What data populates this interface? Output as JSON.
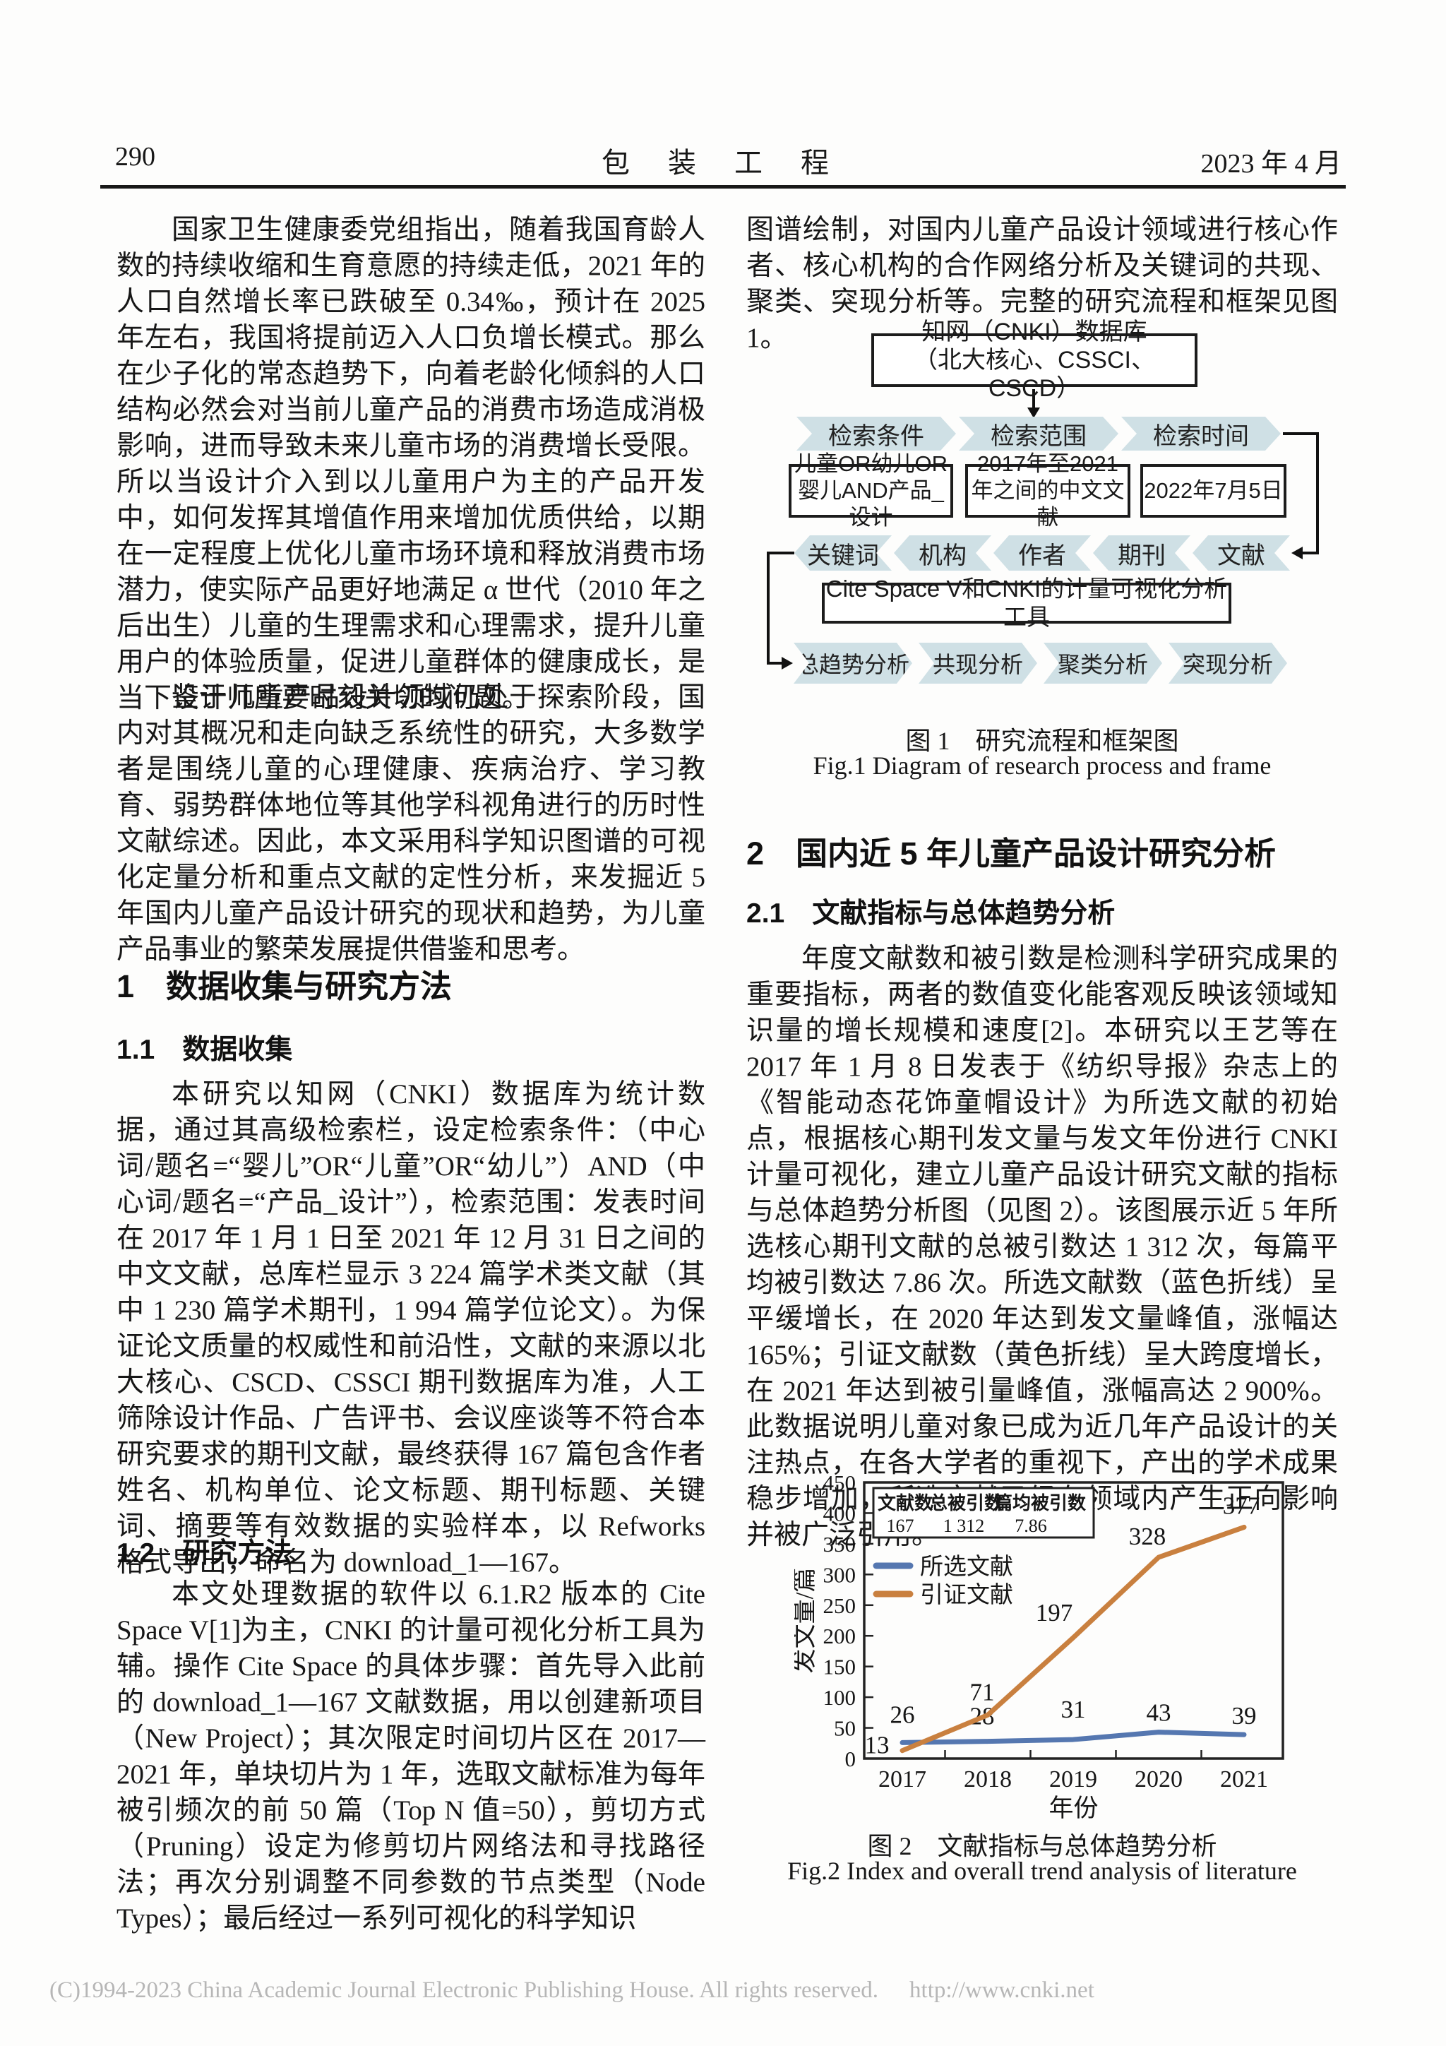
{
  "header": {
    "page_number": "290",
    "journal_title": "包 装 工 程",
    "issue_date": "2023 年 4 月"
  },
  "left_column": {
    "p1": "国家卫生健康委党组指出，随着我国育龄人数的持续收缩和生育意愿的持续走低，2021 年的人口自然增长率已跌破至 0.34‰，预计在 2025 年左右，我国将提前迈入人口负增长模式。那么在少子化的常态趋势下，向着老龄化倾斜的人口结构必然会对当前儿童产品的消费市场造成消极影响，进而导致未来儿童市场的消费增长受限。所以当设计介入到以儿童用户为主的产品开发中，如何发挥其增值作用来增加优质供给，以期在一定程度上优化儿童市场环境和释放消费市场潜力，使实际产品更好地满足 α 世代（2010 年之后出生）儿童的生理需求和心理需求，提升儿童用户的体验质量，促进儿童群体的健康成长，是当下设计师所要时刻关切的问题。",
    "p2": "鉴于儿童产品设计领域仍处于探索阶段，国内对其概况和走向缺乏系统性的研究，大多数学者是围绕儿童的心理健康、疾病治疗、学习教育、弱势群体地位等其他学科视角进行的历时性文献综述。因此，本文采用科学知识图谱的可视化定量分析和重点文献的定性分析，来发掘近 5 年国内儿童产品设计研究的现状和趋势，为儿童产品事业的繁荣发展提供借鉴和思考。",
    "h1": "1　数据收集与研究方法",
    "h1_1": "1.1　数据收集",
    "p3": "本研究以知网（CNKI）数据库为统计数据，通过其高级检索栏，设定检索条件：（中心词/题名=“婴儿”OR“儿童”OR“幼儿”）AND（中心词/题名=“产品_设计”），检索范围：发表时间在 2017 年 1 月 1 日至 2021 年 12 月 31 日之间的中文文献，总库栏显示 3 224 篇学术类文献（其中 1 230 篇学术期刊，1 994 篇学位论文）。为保证论文质量的权威性和前沿性，文献的来源以北大核心、CSCD、CSSCI 期刊数据库为准，人工筛除设计作品、广告评书、会议座谈等不符合本研究要求的期刊文献，最终获得 167 篇包含作者姓名、机构单位、论文标题、期刊标题、关键词、摘要等有效数据的实验样本，以 Refworks 格式导出，命名为 download_1—167。",
    "h1_2": "1.2　研究方法",
    "p4": "本文处理数据的软件以 6.1.R2 版本的 Cite Space V[1]为主，CNKI 的计量可视化分析工具为辅。操作 Cite Space 的具体步骤：首先导入此前的 download_1—167 文献数据，用以创建新项目（New Project）；其次限定时间切片区在 2017—2021 年，单块切片为 1 年，选取文献标准为每年被引频次的前 50 篇（Top N 值=50），剪切方式（Pruning）设定为修剪切片网络法和寻找路径法；再次分别调整不同参数的节点类型（Node Types）；最后经过一系列可视化的科学知识"
  },
  "right_column": {
    "p5": "图谱绘制，对国内儿童产品设计领域进行核心作者、核心机构的合作网络分析及关键词的共现、聚类、突现分析等。完整的研究流程和框架见图 1。",
    "h2": "2　国内近 5 年儿童产品设计研究分析",
    "h2_1": "2.1　文献指标与总体趋势分析",
    "p6": "年度文献数和被引数是检测科学研究成果的重要指标，两者的数值变化能客观反映该领域知识量的增长规模和速度[2]。本研究以王艺等在 2017 年 1 月 8 日发表于《纺织导报》杂志上的《智能动态花饰童帽设计》为所选文献的初始点，根据核心期刊发文量与发文年份进行 CNKI 计量可视化，建立儿童产品设计研究文献的指标与总体趋势分析图（见图 2）。该图展示近 5 年所选核心期刊文献的总被引数达 1 312 次，每篇平均被引数达 7.86 次。所选文献数（蓝色折线）呈平缓增长，在 2020 年达到发文量峰值，涨幅达 165%；引证文献数（黄色折线）呈大跨度增长，在 2021 年达到被引量峰值，涨幅高达 2 900%。此数据说明儿童对象已成为近几年产品设计的关注热点，在各大学者的重视下，产出的学术成果稳步增加，所选文献已经在领域内产生正向影响并被广泛引用。"
  },
  "figure1": {
    "chevron_color": "#cfe0e5",
    "db_box_line1": "知网（CNKI）数据库",
    "db_box_line2": "（北大核心、CSSCI、CSCD）",
    "row1": [
      "检索条件",
      "检索范围",
      "检索时间"
    ],
    "detail_boxes": [
      "儿童OR幼儿OR婴儿AND产品_设计",
      "2017年至2021年之间的中文文献",
      "2022年7月5日"
    ],
    "row2": [
      "关键词",
      "机构",
      "作者",
      "期刊",
      "文献"
    ],
    "tool_box": "Cite Space V和CNKI的计量可视化分析工具",
    "row3": [
      "总趋势分析",
      "共现分析",
      "聚类分析",
      "突现分析"
    ],
    "caption_zh": "图 1　研究流程和框架图",
    "caption_en": "Fig.1 Diagram of research process and frame"
  },
  "figure2": {
    "caption_zh": "图 2　文献指标与总体趋势分析",
    "caption_en": "Fig.2 Index and overall trend analysis of literature",
    "chart_data": {
      "type": "line",
      "xlabel": "年份",
      "ylabel": "发文量/篇",
      "x": [
        "2017",
        "2018",
        "2019",
        "2020",
        "2021"
      ],
      "ylim": [
        0,
        450
      ],
      "ytick_step": 50,
      "grid": false,
      "legend_position": "upper-left-inside",
      "series": [
        {
          "name": "所选文献",
          "color": "#5577b0",
          "values": [
            26,
            28,
            31,
            43,
            39
          ]
        },
        {
          "name": "引证文献",
          "color": "#c9803f",
          "values": [
            13,
            71,
            197,
            328,
            377
          ]
        }
      ],
      "stats_table": {
        "headers": [
          "文献数",
          "总被引数",
          "篇均被引数"
        ],
        "values": [
          "167",
          "1 312",
          "7.86"
        ]
      }
    }
  },
  "footer": {
    "copyright": "(C)1994-2023 China Academic Journal Electronic Publishing House. All rights reserved.",
    "url": "http://www.cnki.net"
  }
}
